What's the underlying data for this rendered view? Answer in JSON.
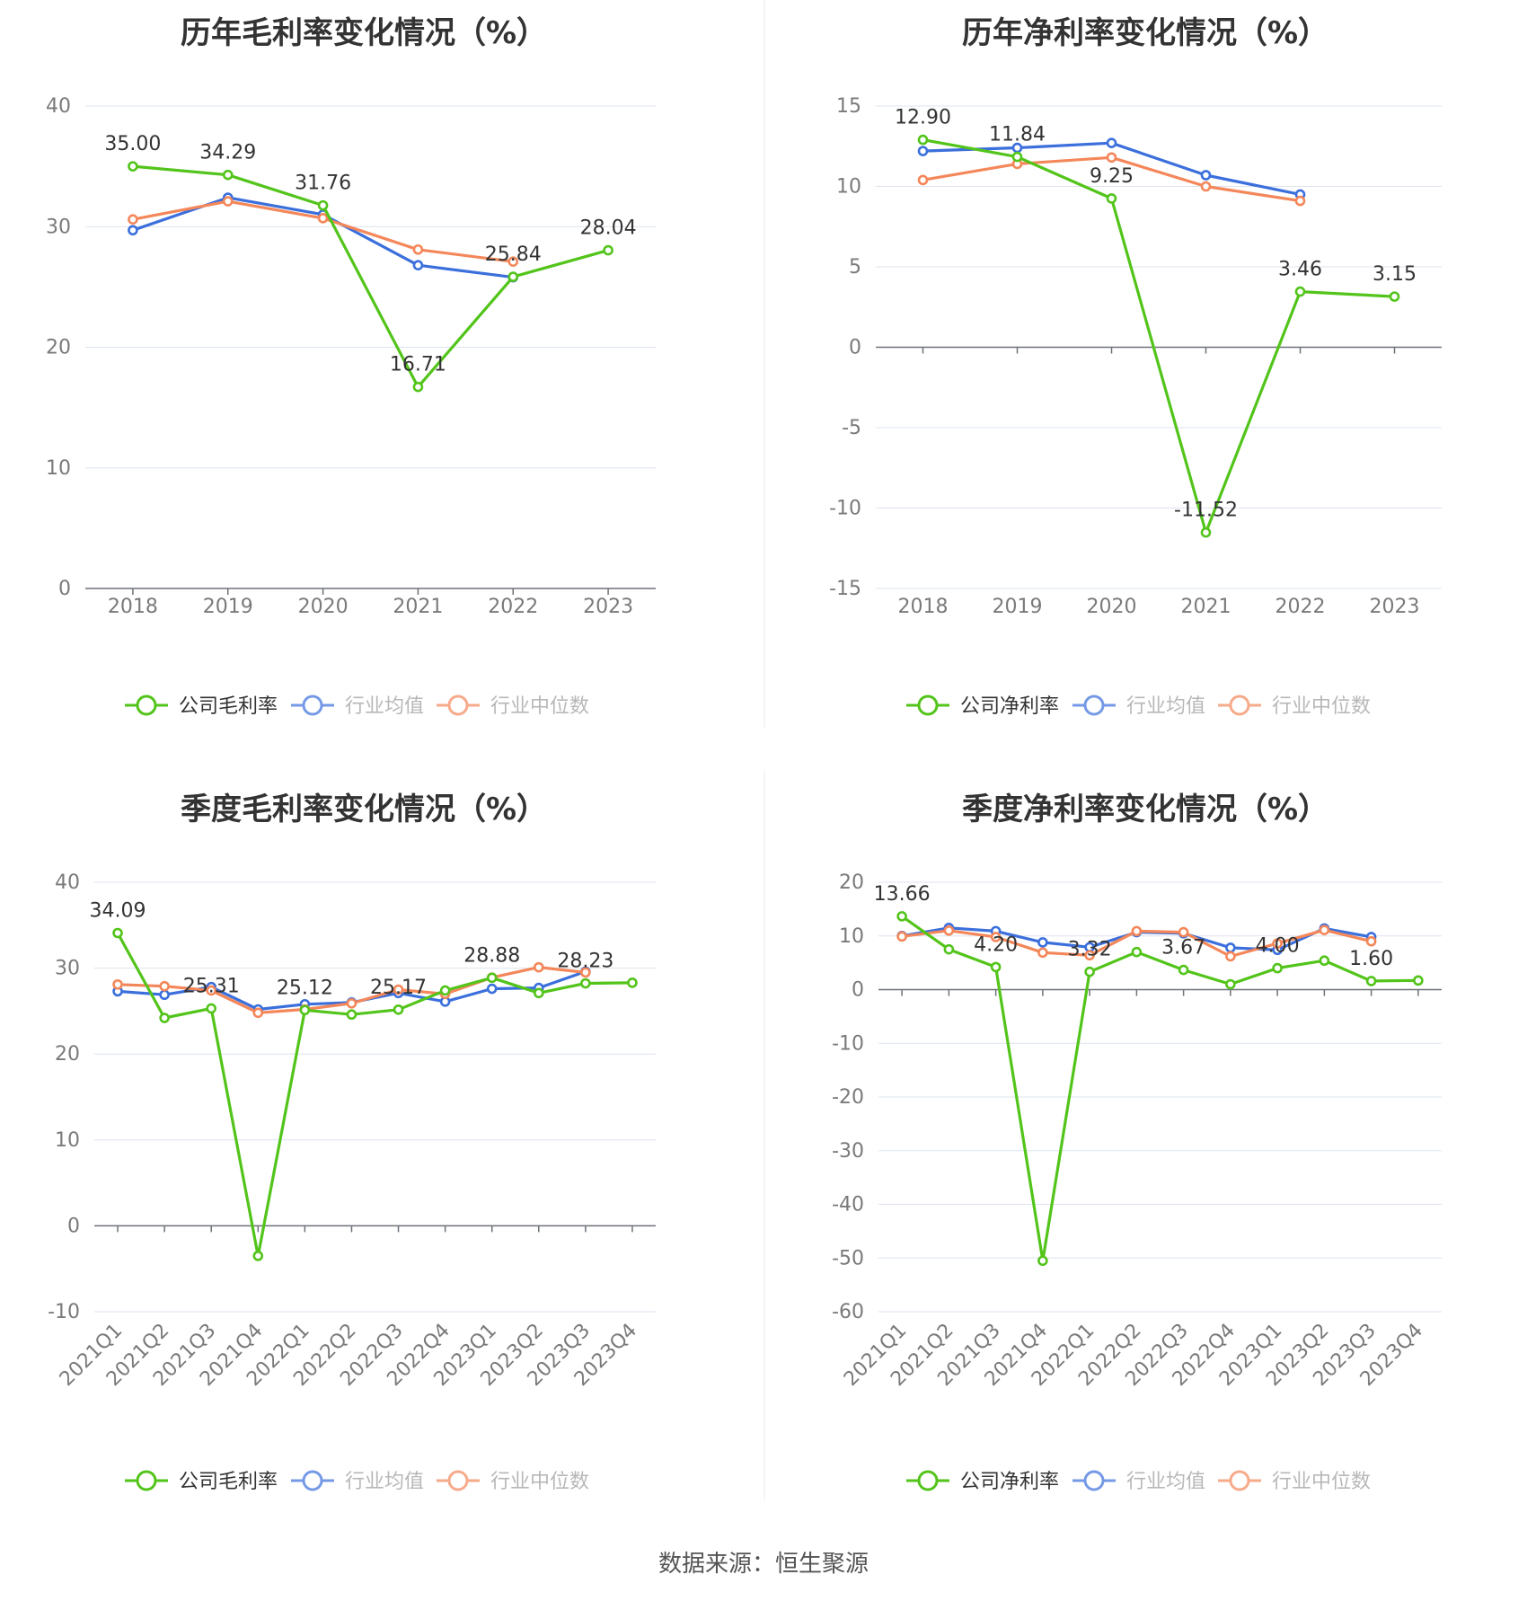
{
  "colors": {
    "company": "#52c41a",
    "average": "#3b6fdc",
    "median": "#f4875a"
  },
  "legend_labels": {
    "gross": [
      "公司毛利率",
      "行业均值",
      "行业中位数"
    ],
    "net": [
      "公司净利率",
      "行业均值",
      "行业中位数"
    ]
  },
  "source": "数据来源：恒生聚源",
  "chart_data": [
    {
      "type": "line",
      "title": "历年毛利率变化情况（%）",
      "categories": [
        "2018",
        "2019",
        "2020",
        "2021",
        "2022",
        "2023"
      ],
      "ylim": [
        0,
        40
      ],
      "yticks": [
        0,
        10,
        20,
        30,
        40
      ],
      "legend": "bottom",
      "series": [
        {
          "name": "公司毛利率",
          "role": "company",
          "values": [
            35.0,
            34.29,
            31.76,
            16.71,
            25.84,
            28.04
          ],
          "labels": [
            "35.00",
            "34.29",
            "31.76",
            "16.71",
            "25.84",
            "28.04"
          ]
        },
        {
          "name": "行业均值",
          "role": "average",
          "values": [
            29.7,
            32.4,
            31.0,
            26.8,
            25.8,
            null
          ]
        },
        {
          "name": "行业中位数",
          "role": "median",
          "values": [
            30.6,
            32.1,
            30.7,
            28.1,
            27.1,
            null
          ]
        }
      ]
    },
    {
      "type": "line",
      "title": "历年净利率变化情况（%）",
      "categories": [
        "2018",
        "2019",
        "2020",
        "2021",
        "2022",
        "2023"
      ],
      "ylim": [
        -15,
        15
      ],
      "yticks": [
        -15,
        -10,
        -5,
        0,
        5,
        10,
        15
      ],
      "legend": "bottom",
      "series": [
        {
          "name": "公司净利率",
          "role": "company",
          "values": [
            12.9,
            11.84,
            9.25,
            -11.52,
            3.46,
            3.15
          ],
          "labels": [
            "12.90",
            "11.84",
            "9.25",
            "-11.52",
            "3.46",
            "3.15"
          ]
        },
        {
          "name": "行业均值",
          "role": "average",
          "values": [
            12.2,
            12.4,
            12.7,
            10.7,
            9.5,
            null
          ]
        },
        {
          "name": "行业中位数",
          "role": "median",
          "values": [
            10.4,
            11.4,
            11.8,
            10.0,
            9.1,
            null
          ]
        }
      ]
    },
    {
      "type": "line",
      "title": "季度毛利率变化情况（%）",
      "categories": [
        "2021Q1",
        "2021Q2",
        "2021Q3",
        "2021Q4",
        "2022Q1",
        "2022Q2",
        "2022Q3",
        "2022Q4",
        "2023Q1",
        "2023Q2",
        "2023Q3",
        "2023Q4"
      ],
      "ylim": [
        -10,
        40
      ],
      "yticks": [
        -10,
        0,
        10,
        20,
        30,
        40
      ],
      "legend": "bottom",
      "series": [
        {
          "name": "公司毛利率",
          "role": "company",
          "values": [
            34.09,
            24.2,
            25.31,
            -3.5,
            25.12,
            24.6,
            25.17,
            27.4,
            28.88,
            27.1,
            28.23,
            28.3
          ],
          "labels": [
            "34.09",
            "",
            "25.31",
            "",
            "25.12",
            "",
            "25.17",
            "",
            "28.88",
            "",
            "28.23",
            ""
          ]
        },
        {
          "name": "行业均值",
          "role": "average",
          "values": [
            27.3,
            26.9,
            27.8,
            25.2,
            25.8,
            26.0,
            27.1,
            26.1,
            27.6,
            27.7,
            29.6,
            null
          ]
        },
        {
          "name": "行业中位数",
          "role": "median",
          "values": [
            28.1,
            27.9,
            27.4,
            24.8,
            25.2,
            25.9,
            27.5,
            27.0,
            28.9,
            30.1,
            29.5,
            null
          ]
        }
      ]
    },
    {
      "type": "line",
      "title": "季度净利率变化情况（%）",
      "categories": [
        "2021Q1",
        "2021Q2",
        "2021Q3",
        "2021Q4",
        "2022Q1",
        "2022Q2",
        "2022Q3",
        "2022Q4",
        "2023Q1",
        "2023Q2",
        "2023Q3",
        "2023Q4"
      ],
      "ylim": [
        -60,
        20
      ],
      "yticks": [
        -60,
        -50,
        -40,
        -30,
        -20,
        -10,
        0,
        10,
        20
      ],
      "legend": "bottom",
      "series": [
        {
          "name": "公司净利率",
          "role": "company",
          "values": [
            13.66,
            7.5,
            4.2,
            -50.5,
            3.32,
            7.0,
            3.67,
            1.0,
            4.0,
            5.4,
            1.6,
            1.7
          ],
          "labels": [
            "13.66",
            "",
            "4.20",
            "",
            "3.32",
            "",
            "3.67",
            "",
            "4.00",
            "",
            "1.60",
            ""
          ]
        },
        {
          "name": "行业均值",
          "role": "average",
          "values": [
            10.0,
            11.5,
            10.9,
            8.8,
            7.9,
            10.7,
            10.5,
            7.8,
            7.4,
            11.4,
            9.8,
            null
          ]
        },
        {
          "name": "行业中位数",
          "role": "median",
          "values": [
            9.9,
            11.0,
            9.8,
            6.9,
            6.4,
            10.9,
            10.7,
            6.2,
            8.6,
            11.1,
            9.0,
            null
          ]
        }
      ]
    }
  ]
}
